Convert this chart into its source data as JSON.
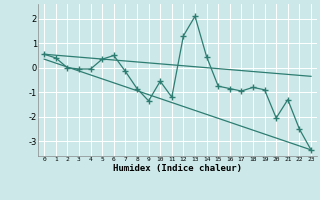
{
  "title": "",
  "xlabel": "Humidex (Indice chaleur)",
  "bg_color": "#cce8e8",
  "grid_color": "#ffffff",
  "line_color": "#2e7d72",
  "xlim": [
    -0.5,
    23.5
  ],
  "ylim": [
    -3.6,
    2.6
  ],
  "xticks": [
    0,
    1,
    2,
    3,
    4,
    5,
    6,
    7,
    8,
    9,
    10,
    11,
    12,
    13,
    14,
    15,
    16,
    17,
    18,
    19,
    20,
    21,
    22,
    23
  ],
  "yticks": [
    -3,
    -2,
    -1,
    0,
    1,
    2
  ],
  "data_x": [
    0,
    1,
    2,
    3,
    4,
    5,
    6,
    7,
    8,
    9,
    10,
    11,
    12,
    13,
    14,
    15,
    16,
    17,
    18,
    19,
    20,
    21,
    22,
    23
  ],
  "data_y": [
    0.55,
    0.4,
    0.0,
    -0.05,
    -0.05,
    0.35,
    0.5,
    -0.15,
    -0.85,
    -1.35,
    -0.55,
    -1.2,
    1.3,
    2.1,
    0.45,
    -0.75,
    -0.85,
    -0.95,
    -0.8,
    -0.9,
    -2.05,
    -1.3,
    -2.5,
    -3.35
  ],
  "trend1_x": [
    0,
    23
  ],
  "trend1_y": [
    0.55,
    -0.35
  ],
  "trend2_x": [
    0,
    23
  ],
  "trend2_y": [
    0.35,
    -3.35
  ]
}
